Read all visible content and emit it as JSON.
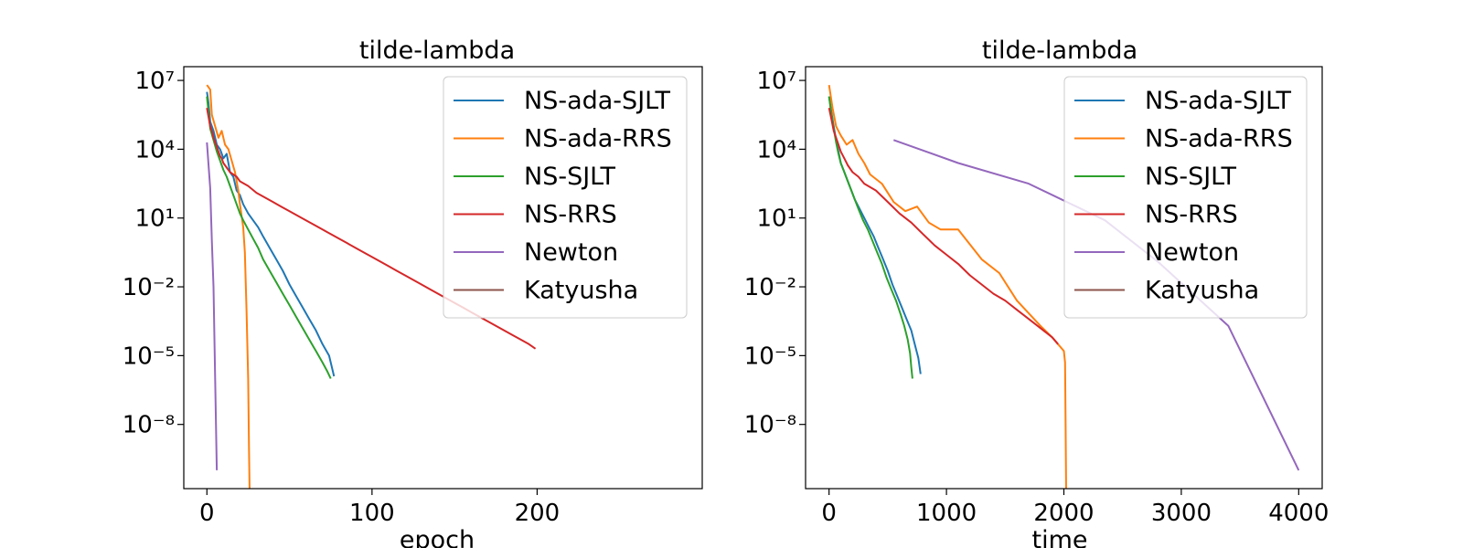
{
  "chart_data": [
    {
      "type": "line",
      "title": "tilde-lambda",
      "xlabel": "epoch",
      "ylabel": "",
      "yscale": "log",
      "xlim": [
        -14,
        300
      ],
      "ylim_log10": [
        -10.8,
        7.6
      ],
      "xticks": [
        0,
        100,
        200
      ],
      "xtick_labels": [
        "0",
        "100",
        "200"
      ],
      "yticks_exp": [
        7,
        4,
        1,
        -2,
        -5,
        -8
      ],
      "legend_position": "top-right",
      "series": [
        {
          "name": "NS-ada-SJLT",
          "color": "#1f77b4",
          "points": [
            [
              0,
              6.5
            ],
            [
              1,
              6.0
            ],
            [
              2,
              5.2
            ],
            [
              4,
              4.8
            ],
            [
              6,
              4.2
            ],
            [
              8,
              4.0
            ],
            [
              10,
              3.6
            ],
            [
              12,
              3.8
            ],
            [
              14,
              3.0
            ],
            [
              16,
              2.8
            ],
            [
              18,
              2.2
            ],
            [
              20,
              2.0
            ],
            [
              22,
              1.6
            ],
            [
              25,
              1.2
            ],
            [
              28,
              0.9
            ],
            [
              31,
              0.6
            ],
            [
              34,
              0.2
            ],
            [
              38,
              -0.3
            ],
            [
              42,
              -0.8
            ],
            [
              46,
              -1.3
            ],
            [
              50,
              -1.9
            ],
            [
              54,
              -2.4
            ],
            [
              58,
              -2.9
            ],
            [
              62,
              -3.4
            ],
            [
              66,
              -3.9
            ],
            [
              70,
              -4.5
            ],
            [
              74,
              -5.0
            ],
            [
              76,
              -5.6
            ],
            [
              77,
              -5.9
            ]
          ]
        },
        {
          "name": "NS-ada-RRS",
          "color": "#ff7f0e",
          "points": [
            [
              0,
              6.8
            ],
            [
              2,
              6.6
            ],
            [
              3,
              5.5
            ],
            [
              5,
              5.0
            ],
            [
              7,
              4.5
            ],
            [
              9,
              4.8
            ],
            [
              11,
              4.2
            ],
            [
              13,
              4.0
            ],
            [
              15,
              3.5
            ],
            [
              17,
              3.0
            ],
            [
              19,
              2.2
            ],
            [
              20,
              1.6
            ],
            [
              22,
              0.6
            ],
            [
              23,
              -0.5
            ],
            [
              24,
              -3.0
            ],
            [
              25,
              -6.0
            ],
            [
              25.5,
              -9.0
            ],
            [
              26,
              -11.5
            ]
          ]
        },
        {
          "name": "NS-SJLT",
          "color": "#2ca02c",
          "points": [
            [
              0,
              6.3
            ],
            [
              1,
              5.6
            ],
            [
              2,
              4.9
            ],
            [
              4,
              4.4
            ],
            [
              6,
              3.9
            ],
            [
              8,
              3.5
            ],
            [
              10,
              3.1
            ],
            [
              12,
              2.8
            ],
            [
              14,
              2.4
            ],
            [
              16,
              2.0
            ],
            [
              18,
              1.6
            ],
            [
              20,
              1.2
            ],
            [
              22,
              0.9
            ],
            [
              25,
              0.5
            ],
            [
              28,
              0.1
            ],
            [
              31,
              -0.3
            ],
            [
              34,
              -0.8
            ],
            [
              38,
              -1.3
            ],
            [
              42,
              -1.8
            ],
            [
              46,
              -2.3
            ],
            [
              50,
              -2.8
            ],
            [
              54,
              -3.3
            ],
            [
              58,
              -3.8
            ],
            [
              62,
              -4.3
            ],
            [
              66,
              -4.8
            ],
            [
              70,
              -5.3
            ],
            [
              73,
              -5.7
            ],
            [
              75,
              -6.0
            ]
          ]
        },
        {
          "name": "NS-RRS",
          "color": "#d62728",
          "points": [
            [
              0,
              5.8
            ],
            [
              1,
              5.4
            ],
            [
              2,
              5.0
            ],
            [
              3,
              4.8
            ],
            [
              4,
              4.5
            ],
            [
              5,
              4.3
            ],
            [
              6,
              4.1
            ],
            [
              7,
              3.9
            ],
            [
              8,
              3.7
            ],
            [
              9,
              3.6
            ],
            [
              10,
              3.4
            ],
            [
              12,
              3.2
            ],
            [
              14,
              3.0
            ],
            [
              16,
              2.9
            ],
            [
              18,
              2.8
            ],
            [
              20,
              2.6
            ],
            [
              25,
              2.4
            ],
            [
              30,
              2.1
            ],
            [
              35,
              1.9
            ],
            [
              40,
              1.7
            ],
            [
              45,
              1.5
            ],
            [
              50,
              1.3
            ],
            [
              55,
              1.1
            ],
            [
              60,
              0.9
            ],
            [
              65,
              0.7
            ],
            [
              70,
              0.5
            ],
            [
              75,
              0.3
            ],
            [
              80,
              0.1
            ],
            [
              85,
              -0.1
            ],
            [
              90,
              -0.3
            ],
            [
              95,
              -0.5
            ],
            [
              100,
              -0.7
            ],
            [
              105,
              -0.9
            ],
            [
              110,
              -1.1
            ],
            [
              115,
              -1.3
            ],
            [
              120,
              -1.5
            ],
            [
              125,
              -1.7
            ],
            [
              130,
              -1.9
            ],
            [
              135,
              -2.1
            ],
            [
              140,
              -2.3
            ],
            [
              145,
              -2.5
            ],
            [
              150,
              -2.7
            ],
            [
              155,
              -2.9
            ],
            [
              160,
              -3.1
            ],
            [
              165,
              -3.3
            ],
            [
              170,
              -3.5
            ],
            [
              175,
              -3.7
            ],
            [
              180,
              -3.9
            ],
            [
              185,
              -4.1
            ],
            [
              190,
              -4.3
            ],
            [
              195,
              -4.5
            ],
            [
              199,
              -4.7
            ]
          ]
        },
        {
          "name": "Newton",
          "color": "#9467bd",
          "points": [
            [
              0,
              4.3
            ],
            [
              1,
              3.3
            ],
            [
              2,
              2.3
            ],
            [
              3,
              0.0
            ],
            [
              4,
              -2.0
            ],
            [
              5,
              -6.0
            ],
            [
              6,
              -10.0
            ]
          ]
        },
        {
          "name": "Katyusha",
          "color": "#8c564b",
          "points": []
        }
      ]
    },
    {
      "type": "line",
      "title": "tilde-lambda",
      "xlabel": "time",
      "ylabel": "",
      "yscale": "log",
      "xlim": [
        -200,
        4200
      ],
      "ylim_log10": [
        -10.8,
        7.6
      ],
      "xticks": [
        0,
        1000,
        2000,
        3000,
        4000
      ],
      "xtick_labels": [
        "0",
        "1000",
        "2000",
        "3000",
        "4000"
      ],
      "yticks_exp": [
        7,
        4,
        1,
        -2,
        -5,
        -8
      ],
      "legend_position": "top-right",
      "series": [
        {
          "name": "NS-ada-SJLT",
          "color": "#1f77b4",
          "points": [
            [
              0,
              6.3
            ],
            [
              20,
              5.6
            ],
            [
              40,
              5.0
            ],
            [
              60,
              4.4
            ],
            [
              80,
              3.9
            ],
            [
              100,
              3.4
            ],
            [
              130,
              3.0
            ],
            [
              160,
              2.6
            ],
            [
              190,
              2.2
            ],
            [
              220,
              1.8
            ],
            [
              260,
              1.4
            ],
            [
              300,
              1.0
            ],
            [
              340,
              0.6
            ],
            [
              380,
              0.2
            ],
            [
              420,
              -0.3
            ],
            [
              460,
              -0.8
            ],
            [
              500,
              -1.3
            ],
            [
              540,
              -1.9
            ],
            [
              580,
              -2.4
            ],
            [
              620,
              -2.9
            ],
            [
              660,
              -3.4
            ],
            [
              700,
              -3.9
            ],
            [
              730,
              -4.5
            ],
            [
              760,
              -5.1
            ],
            [
              780,
              -5.8
            ]
          ]
        },
        {
          "name": "NS-ada-RRS",
          "color": "#ff7f0e",
          "points": [
            [
              0,
              6.8
            ],
            [
              30,
              5.8
            ],
            [
              60,
              5.0
            ],
            [
              100,
              4.6
            ],
            [
              150,
              4.2
            ],
            [
              200,
              4.4
            ],
            [
              250,
              3.8
            ],
            [
              300,
              3.4
            ],
            [
              350,
              2.9
            ],
            [
              450,
              2.5
            ],
            [
              550,
              1.7
            ],
            [
              650,
              1.3
            ],
            [
              750,
              1.5
            ],
            [
              850,
              0.8
            ],
            [
              950,
              0.5
            ],
            [
              1100,
              0.5
            ],
            [
              1300,
              -0.8
            ],
            [
              1450,
              -1.4
            ],
            [
              1600,
              -2.6
            ],
            [
              1800,
              -3.7
            ],
            [
              1900,
              -4.2
            ],
            [
              2000,
              -4.8
            ],
            [
              2010,
              -5.3
            ],
            [
              2015,
              -8.0
            ],
            [
              2020,
              -11.5
            ]
          ]
        },
        {
          "name": "NS-SJLT",
          "color": "#2ca02c",
          "points": [
            [
              0,
              6.3
            ],
            [
              20,
              5.5
            ],
            [
              40,
              4.9
            ],
            [
              60,
              4.3
            ],
            [
              80,
              3.8
            ],
            [
              100,
              3.4
            ],
            [
              130,
              3.0
            ],
            [
              160,
              2.6
            ],
            [
              190,
              2.2
            ],
            [
              220,
              1.8
            ],
            [
              250,
              1.4
            ],
            [
              290,
              0.9
            ],
            [
              330,
              0.5
            ],
            [
              370,
              0.0
            ],
            [
              410,
              -0.5
            ],
            [
              450,
              -1.0
            ],
            [
              490,
              -1.6
            ],
            [
              530,
              -2.1
            ],
            [
              570,
              -2.6
            ],
            [
              610,
              -3.2
            ],
            [
              640,
              -3.7
            ],
            [
              670,
              -4.3
            ],
            [
              690,
              -4.9
            ],
            [
              700,
              -5.5
            ],
            [
              710,
              -6.0
            ]
          ]
        },
        {
          "name": "NS-RRS",
          "color": "#d62728",
          "points": [
            [
              0,
              5.8
            ],
            [
              20,
              5.3
            ],
            [
              40,
              4.8
            ],
            [
              60,
              4.5
            ],
            [
              80,
              4.2
            ],
            [
              100,
              3.9
            ],
            [
              130,
              3.6
            ],
            [
              160,
              3.3
            ],
            [
              200,
              3.0
            ],
            [
              250,
              2.8
            ],
            [
              300,
              2.5
            ],
            [
              400,
              2.2
            ],
            [
              500,
              1.7
            ],
            [
              600,
              1.2
            ],
            [
              700,
              0.8
            ],
            [
              800,
              0.3
            ],
            [
              900,
              -0.2
            ],
            [
              1000,
              -0.6
            ],
            [
              1100,
              -1.0
            ],
            [
              1200,
              -1.5
            ],
            [
              1300,
              -1.9
            ],
            [
              1400,
              -2.3
            ],
            [
              1500,
              -2.6
            ],
            [
              1600,
              -3.0
            ],
            [
              1700,
              -3.4
            ],
            [
              1800,
              -3.8
            ],
            [
              1900,
              -4.2
            ],
            [
              1950,
              -4.5
            ]
          ]
        },
        {
          "name": "Newton",
          "color": "#9467bd",
          "points": [
            [
              550,
              4.4
            ],
            [
              1100,
              3.4
            ],
            [
              1700,
              2.5
            ],
            [
              2350,
              0.9
            ],
            [
              2800,
              -0.9
            ],
            [
              3400,
              -3.7
            ],
            [
              4000,
              -10.0
            ]
          ]
        },
        {
          "name": "Katyusha",
          "color": "#8c564b",
          "points": []
        }
      ]
    }
  ]
}
